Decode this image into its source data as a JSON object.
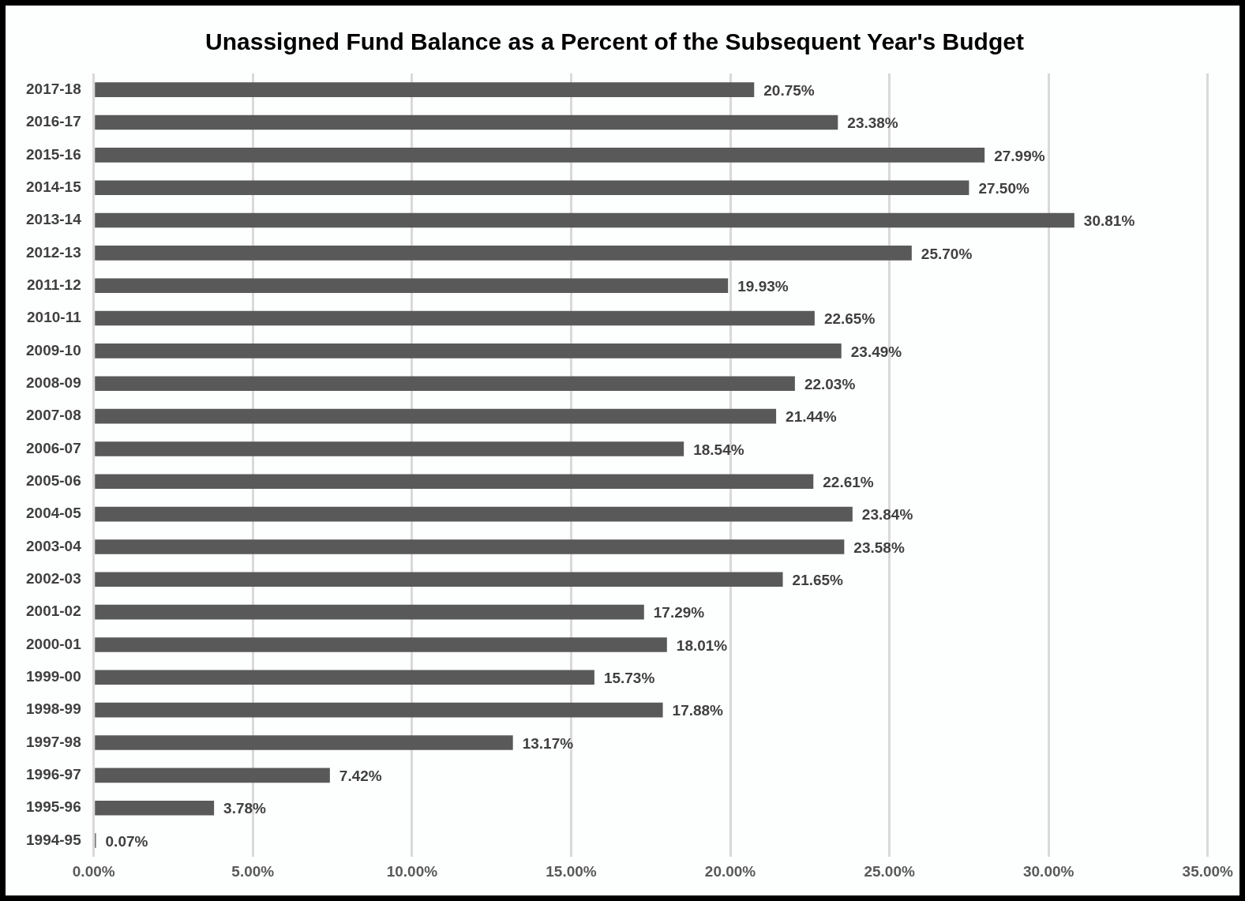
{
  "chart_data": {
    "type": "bar",
    "orientation": "horizontal",
    "title": "Unassigned Fund Balance as a Percent of the Subsequent Year's Budget",
    "categories": [
      "2017-18",
      "2016-17",
      "2015-16",
      "2014-15",
      "2013-14",
      "2012-13",
      "2011-12",
      "2010-11",
      "2009-10",
      "2008-09",
      "2007-08",
      "2006-07",
      "2005-06",
      "2004-05",
      "2003-04",
      "2002-03",
      "2001-02",
      "2000-01",
      "1999-00",
      "1998-99",
      "1997-98",
      "1996-97",
      "1995-96",
      "1994-95"
    ],
    "values": [
      20.75,
      23.38,
      27.99,
      27.5,
      30.81,
      25.7,
      19.93,
      22.65,
      23.49,
      22.03,
      21.44,
      18.54,
      22.61,
      23.84,
      23.58,
      21.65,
      17.29,
      18.01,
      15.73,
      17.88,
      13.17,
      7.42,
      3.78,
      0.07
    ],
    "value_labels": [
      "20.75%",
      "23.38%",
      "27.99%",
      "27.50%",
      "30.81%",
      "25.70%",
      "19.93%",
      "22.65%",
      "23.49%",
      "22.03%",
      "21.44%",
      "18.54%",
      "22.61%",
      "23.84%",
      "23.58%",
      "21.65%",
      "17.29%",
      "18.01%",
      "15.73%",
      "17.88%",
      "13.17%",
      "7.42%",
      "3.78%",
      "0.07%"
    ],
    "color": "#595959",
    "xlim": [
      0,
      35
    ],
    "xticks": [
      {
        "value": 0,
        "label": "0.00%"
      },
      {
        "value": 5,
        "label": "5.00%"
      },
      {
        "value": 10,
        "label": "10.00%"
      },
      {
        "value": 15,
        "label": "15.00%"
      },
      {
        "value": 20,
        "label": "20.00%"
      },
      {
        "value": 25,
        "label": "25.00%"
      },
      {
        "value": 30,
        "label": "30.00%"
      },
      {
        "value": 35,
        "label": "35.00%"
      }
    ],
    "grid": "x",
    "legend": false
  }
}
